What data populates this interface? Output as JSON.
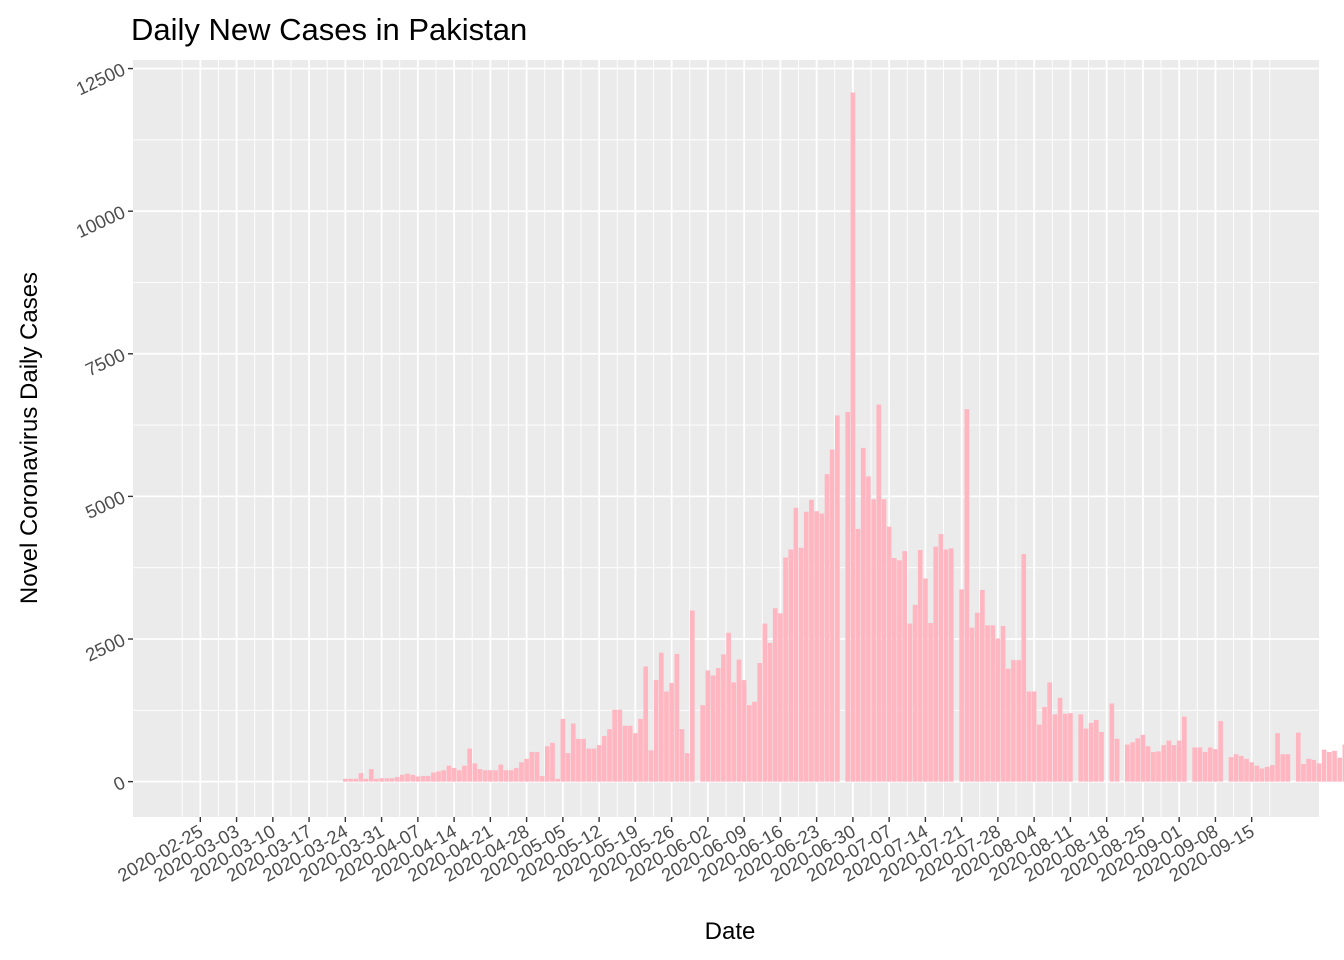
{
  "chart_data": {
    "type": "bar",
    "title": "Daily New Cases in Pakistan",
    "xlabel": "Date",
    "ylabel": "Novel Coronavirus Daily Cases",
    "x_start": "2020-02-22",
    "x_end": "2020-09-15",
    "xlim": [
      "2020-02-12",
      "2020-09-28"
    ],
    "ylim": [
      -620,
      12650
    ],
    "y_ticks": [
      0,
      2500,
      5000,
      7500,
      10000,
      12500
    ],
    "x_ticks": [
      "2020-02-25",
      "2020-03-03",
      "2020-03-10",
      "2020-03-17",
      "2020-03-24",
      "2020-03-31",
      "2020-04-07",
      "2020-04-14",
      "2020-04-21",
      "2020-04-28",
      "2020-05-05",
      "2020-05-12",
      "2020-05-19",
      "2020-05-26",
      "2020-06-02",
      "2020-06-09",
      "2020-06-16",
      "2020-06-23",
      "2020-06-30",
      "2020-07-07",
      "2020-07-14",
      "2020-07-21",
      "2020-07-28",
      "2020-08-04",
      "2020-08-11",
      "2020-08-18",
      "2020-08-25",
      "2020-09-01",
      "2020-09-08",
      "2020-09-15"
    ],
    "bar_color": "#ffb6c1",
    "panel_background": "#ebebeb",
    "grid": true,
    "values": [
      0,
      0,
      0,
      0,
      0,
      0,
      0,
      0,
      0,
      0,
      0,
      0,
      0,
      0,
      0,
      0,
      0,
      0,
      0,
      0,
      0,
      0,
      0,
      0,
      0,
      0,
      0,
      0,
      0,
      0,
      0,
      50,
      50,
      50,
      150,
      50,
      220,
      50,
      60,
      60,
      60,
      80,
      120,
      140,
      120,
      90,
      100,
      100,
      160,
      180,
      200,
      280,
      240,
      200,
      280,
      580,
      320,
      220,
      200,
      200,
      200,
      300,
      200,
      200,
      240,
      340,
      400,
      520,
      520,
      100,
      620,
      680,
      50,
      1100,
      500,
      1020,
      750,
      750,
      580,
      580,
      640,
      800,
      920,
      1260,
      1260,
      980,
      980,
      850,
      1100,
      2020,
      550,
      1780,
      2260,
      1580,
      1730,
      2240,
      920,
      500,
      3000,
      0,
      1340,
      1950,
      1860,
      1990,
      2230,
      2610,
      1740,
      2140,
      1780,
      1340,
      1400,
      2080,
      2770,
      2430,
      3040,
      2950,
      3930,
      4070,
      4800,
      4100,
      4730,
      4940,
      4740,
      4700,
      5390,
      5820,
      6420,
      0,
      6480,
      12080,
      4430,
      5850,
      5350,
      4950,
      6610,
      4950,
      4470,
      3920,
      3880,
      4040,
      2770,
      3100,
      4060,
      3560,
      2780,
      4120,
      4340,
      4070,
      4090,
      0,
      3370,
      6530,
      2700,
      2960,
      3360,
      2740,
      2740,
      2510,
      2730,
      1980,
      2130,
      2130,
      3990,
      1580,
      1580,
      1000,
      1310,
      1740,
      1180,
      1470,
      1190,
      1200,
      0,
      1180,
      930,
      1030,
      1080,
      870,
      0,
      1370,
      750,
      0,
      650,
      690,
      760,
      820,
      620,
      520,
      530,
      640,
      720,
      640,
      720,
      1140,
      0,
      600,
      600,
      520,
      600,
      570,
      1060,
      0,
      430,
      480,
      450,
      400,
      340,
      280,
      230,
      260,
      290,
      850,
      480,
      480,
      0,
      860,
      310,
      400,
      380,
      320,
      560,
      520,
      540,
      420,
      650
    ]
  }
}
